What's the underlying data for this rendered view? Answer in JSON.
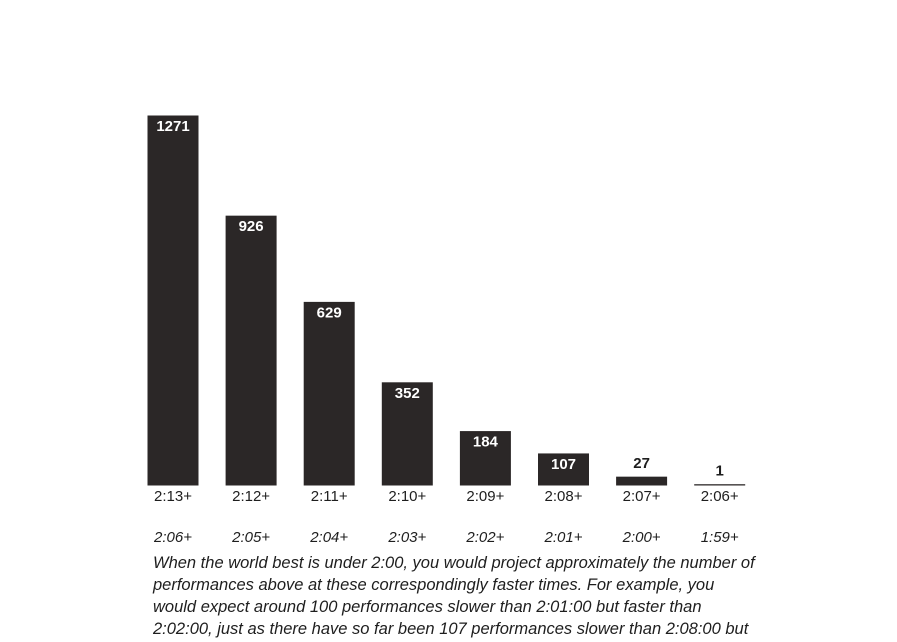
{
  "chart_data": {
    "type": "bar",
    "categories": [
      "2:13+",
      "2:12+",
      "2:11+",
      "2:10+",
      "2:09+",
      "2:08+",
      "2:07+",
      "2:06+"
    ],
    "equivalent_categories": [
      "2:06+",
      "2:05+",
      "2:04+",
      "2:03+",
      "2:02+",
      "2:01+",
      "2:00+",
      "1:59+"
    ],
    "values": [
      1271,
      926,
      629,
      352,
      184,
      107,
      27,
      1
    ],
    "color": "#2b2727",
    "caption": [
      "When the world best is under 2:00, you would project approximately the number of",
      "performances above at these correspondingly faster times. For example, you",
      "would expect around 100 performances slower than 2:01:00 but faster than",
      "2:02:00, just as there have so far been 107 performances slower than 2:08:00 but"
    ]
  }
}
